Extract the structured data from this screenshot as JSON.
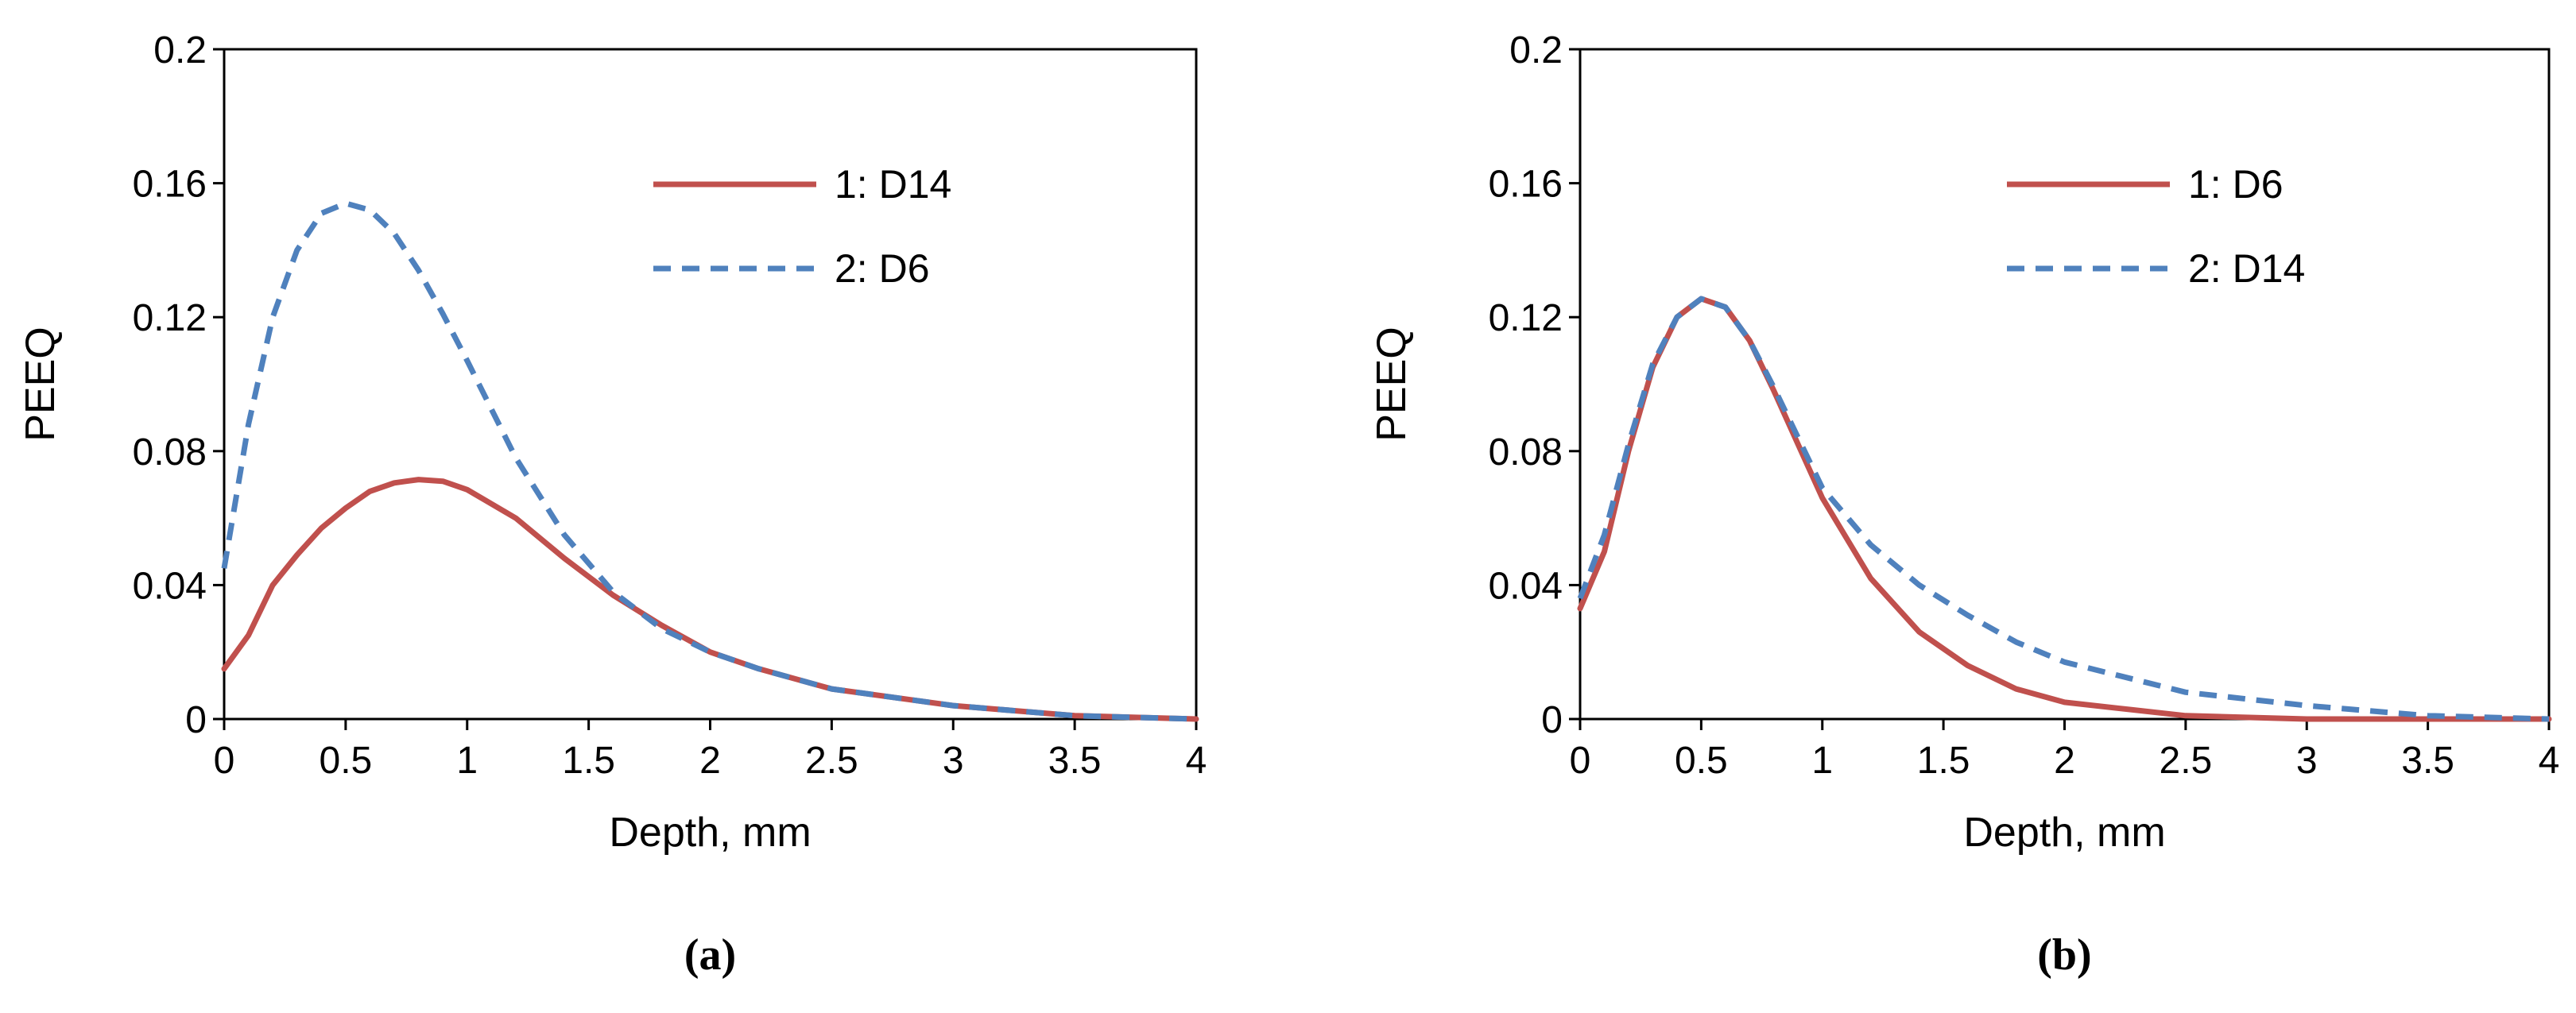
{
  "colors": {
    "series1": "#c0504d",
    "series2": "#4f81bd",
    "axis": "#000000"
  },
  "panels": [
    {
      "label": "(a)"
    },
    {
      "label": "(b)"
    }
  ],
  "chart_data": [
    {
      "type": "line",
      "xlabel": "Depth, mm",
      "ylabel": "PEEQ",
      "xlim": [
        0,
        4
      ],
      "ylim": [
        0,
        0.2
      ],
      "xticks": [
        "0",
        "0.5",
        "1",
        "1.5",
        "2",
        "2.5",
        "3",
        "3.5",
        "4"
      ],
      "yticks": [
        "0",
        "0.04",
        "0.08",
        "0.12",
        "0.16",
        "0.2"
      ],
      "grid": false,
      "legend": "top-right",
      "series": [
        {
          "name": "1: D14",
          "style": "solid",
          "x": [
            0,
            0.1,
            0.2,
            0.3,
            0.4,
            0.5,
            0.6,
            0.7,
            0.8,
            0.9,
            1.0,
            1.2,
            1.4,
            1.6,
            1.8,
            2.0,
            2.2,
            2.5,
            3.0,
            3.5,
            4.0
          ],
          "y": [
            0.015,
            0.025,
            0.04,
            0.049,
            0.057,
            0.063,
            0.068,
            0.0705,
            0.0715,
            0.071,
            0.0685,
            0.06,
            0.048,
            0.037,
            0.028,
            0.02,
            0.015,
            0.009,
            0.004,
            0.001,
            0.0
          ]
        },
        {
          "name": "2: D6",
          "style": "dashed",
          "x": [
            0,
            0.1,
            0.2,
            0.3,
            0.4,
            0.5,
            0.6,
            0.7,
            0.8,
            0.9,
            1.0,
            1.2,
            1.4,
            1.6,
            1.8,
            2.0,
            2.2,
            2.5,
            3.0,
            3.5,
            4.0
          ],
          "y": [
            0.045,
            0.088,
            0.12,
            0.14,
            0.151,
            0.154,
            0.152,
            0.145,
            0.134,
            0.121,
            0.107,
            0.078,
            0.055,
            0.038,
            0.027,
            0.02,
            0.015,
            0.009,
            0.004,
            0.001,
            0.0
          ]
        }
      ]
    },
    {
      "type": "line",
      "xlabel": "Depth, mm",
      "ylabel": "PEEQ",
      "xlim": [
        0,
        4
      ],
      "ylim": [
        0,
        0.2
      ],
      "xticks": [
        "0",
        "0.5",
        "1",
        "1.5",
        "2",
        "2.5",
        "3",
        "3.5",
        "4"
      ],
      "yticks": [
        "0",
        "0.04",
        "0.08",
        "0.12",
        "0.16",
        "0.2"
      ],
      "grid": false,
      "legend": "top-right",
      "series": [
        {
          "name": "1: D6",
          "style": "solid",
          "x": [
            0,
            0.1,
            0.2,
            0.3,
            0.4,
            0.5,
            0.6,
            0.7,
            0.8,
            0.9,
            1.0,
            1.2,
            1.4,
            1.6,
            1.8,
            2.0,
            2.5,
            3.0,
            3.5,
            4.0
          ],
          "y": [
            0.033,
            0.05,
            0.08,
            0.105,
            0.12,
            0.1255,
            0.123,
            0.113,
            0.098,
            0.082,
            0.066,
            0.042,
            0.026,
            0.016,
            0.009,
            0.005,
            0.001,
            0.0,
            0.0,
            0.0
          ]
        },
        {
          "name": "2: D14",
          "style": "dashed",
          "x": [
            0,
            0.1,
            0.2,
            0.3,
            0.4,
            0.5,
            0.6,
            0.7,
            0.8,
            0.9,
            1.0,
            1.2,
            1.4,
            1.6,
            1.8,
            2.0,
            2.5,
            3.0,
            3.5,
            4.0
          ],
          "y": [
            0.036,
            0.055,
            0.082,
            0.106,
            0.12,
            0.1255,
            0.123,
            0.113,
            0.099,
            0.084,
            0.069,
            0.052,
            0.04,
            0.031,
            0.023,
            0.017,
            0.008,
            0.004,
            0.001,
            0.0
          ]
        }
      ]
    }
  ]
}
